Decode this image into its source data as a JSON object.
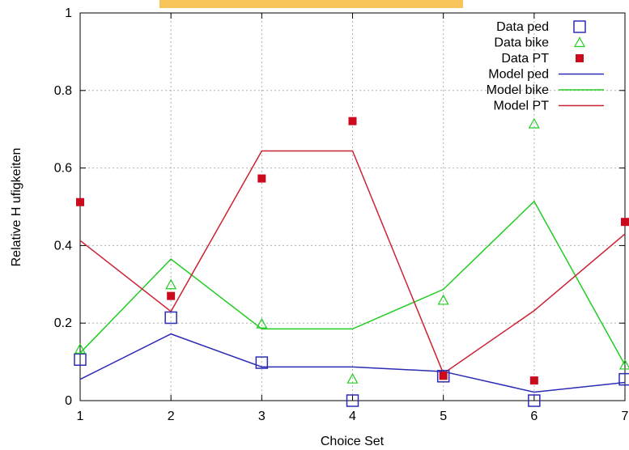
{
  "chart_data": {
    "type": "line",
    "xlabel": "Choice Set",
    "ylabel": "Relative H ufigkeiten",
    "x": [
      1,
      2,
      3,
      4,
      5,
      6,
      7
    ],
    "xlim": [
      1,
      7
    ],
    "ylim": [
      0,
      1
    ],
    "xticks": [
      "1",
      "2",
      "3",
      "4",
      "5",
      "6",
      "7"
    ],
    "yticks": [
      "0",
      "0.2",
      "0.4",
      "0.6",
      "0.8",
      "1"
    ],
    "grid": true,
    "legend_position": "top-right",
    "series": [
      {
        "name": "Data ped",
        "kind": "points",
        "marker": "open-square",
        "color": "#2b2bb5",
        "values": [
          0.106,
          0.214,
          0.098,
          0.0,
          0.063,
          0.0,
          0.055
        ]
      },
      {
        "name": "Data bike",
        "kind": "points",
        "marker": "open-triangle",
        "color": "#22cc22",
        "values": [
          0.133,
          0.299,
          0.198,
          0.056,
          0.259,
          0.714,
          0.092
        ]
      },
      {
        "name": "Data PT",
        "kind": "points",
        "marker": "filled-square",
        "color": "#cc0a1e",
        "values": [
          0.512,
          0.27,
          0.573,
          0.721,
          0.064,
          0.052,
          0.461
        ]
      },
      {
        "name": "Model ped",
        "kind": "line",
        "color": "#2b2bb5",
        "values": [
          0.055,
          0.172,
          0.087,
          0.087,
          0.075,
          0.022,
          0.047
        ]
      },
      {
        "name": "Model bike",
        "kind": "line",
        "color": "#22cc22",
        "values": [
          0.123,
          0.365,
          0.185,
          0.185,
          0.287,
          0.514,
          0.092
        ]
      },
      {
        "name": "Model PT",
        "kind": "line",
        "color": "#cc2233",
        "values": [
          0.413,
          0.23,
          0.644,
          0.644,
          0.07,
          0.232,
          0.43
        ]
      }
    ]
  }
}
